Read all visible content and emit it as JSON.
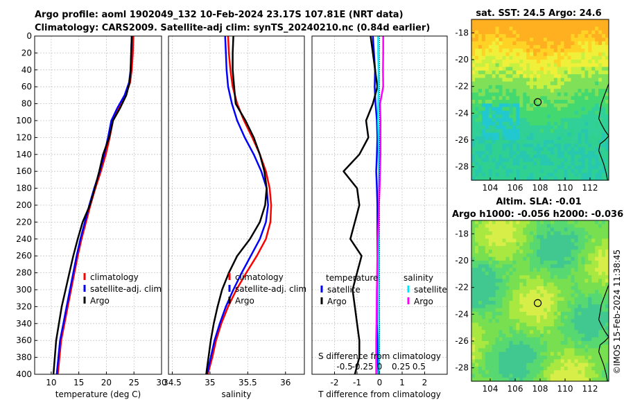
{
  "header": {
    "line1": "Argo profile: aoml 1902049_132 10-Feb-2024 23.17S 107.81E (NRT data)",
    "line2": "Climatology: CARS2009. Satellite-adj clim: synTS_20240210.nc (0.84d earlier)"
  },
  "watermark": "©IMOS 15-Feb-2024 11:38:45",
  "colors": {
    "climatology": "#ff0000",
    "satellite": "#0000ff",
    "argo": "#000000",
    "sat_salinity": "#00e5ff",
    "argo_salinity": "#ff00ff",
    "grid": "#c8c8c8"
  },
  "chart_data": [
    {
      "type": "line",
      "name": "temperature-profile",
      "xlabel": "temperature (deg C)",
      "xlim": [
        7,
        30
      ],
      "ylim": [
        0,
        400
      ],
      "y_reversed": true,
      "xticks": [
        "10",
        "15",
        "20",
        "25",
        "30"
      ],
      "xtick_values": [
        10,
        15,
        20,
        25,
        30
      ],
      "yticks": [
        "0",
        "20",
        "40",
        "60",
        "80",
        "100",
        "120",
        "140",
        "160",
        "180",
        "200",
        "220",
        "240",
        "260",
        "280",
        "300",
        "320",
        "340",
        "360",
        "380",
        "400"
      ],
      "ytick_values": [
        0,
        20,
        40,
        60,
        80,
        100,
        120,
        140,
        160,
        180,
        200,
        220,
        240,
        260,
        280,
        300,
        320,
        340,
        360,
        380,
        400
      ],
      "legend": [
        "climatology",
        "satellite-adj. clim",
        "Argo"
      ],
      "series": [
        {
          "name": "climatology",
          "color": "#ff0000",
          "x": [
            24.9,
            24.8,
            24.6,
            24.3,
            23.5,
            22.3,
            21.2,
            20.6,
            19.9,
            19.0,
            18.0,
            17.1,
            16.3,
            15.5,
            14.8,
            14.2,
            13.6,
            13.0,
            12.4,
            11.8,
            11.2
          ],
          "y": [
            0,
            20,
            40,
            55,
            70,
            85,
            100,
            120,
            140,
            160,
            180,
            200,
            220,
            240,
            260,
            280,
            300,
            320,
            340,
            360,
            400
          ]
        },
        {
          "name": "satellite-adj. clim",
          "color": "#0000ff",
          "x": [
            24.6,
            24.5,
            24.4,
            24.1,
            23.3,
            22.0,
            20.9,
            20.3,
            19.6,
            18.8,
            17.8,
            16.9,
            16.1,
            15.3,
            14.6,
            14.0,
            13.4,
            12.8,
            12.2,
            11.6,
            11.0
          ],
          "y": [
            0,
            20,
            40,
            55,
            70,
            85,
            100,
            120,
            140,
            160,
            180,
            200,
            220,
            240,
            260,
            280,
            300,
            320,
            340,
            360,
            400
          ]
        },
        {
          "name": "Argo",
          "color": "#000000",
          "x": [
            24.6,
            24.5,
            24.4,
            24.2,
            23.6,
            22.5,
            21.2,
            20.5,
            19.4,
            18.7,
            17.9,
            17.0,
            15.7,
            14.8,
            14.0,
            13.3,
            12.6,
            11.9,
            11.4,
            10.9,
            10.4
          ],
          "y": [
            0,
            20,
            40,
            55,
            70,
            85,
            100,
            120,
            140,
            160,
            180,
            200,
            220,
            240,
            260,
            280,
            300,
            320,
            340,
            360,
            400
          ]
        }
      ]
    },
    {
      "type": "line",
      "name": "salinity-profile",
      "xlabel": "salinity",
      "xlim": [
        34.45,
        36.25
      ],
      "ylim": [
        0,
        400
      ],
      "y_reversed": true,
      "xticks": [
        "34.5",
        "35",
        "35.5",
        "36"
      ],
      "xtick_values": [
        34.5,
        35,
        35.5,
        36
      ],
      "legend": [
        "climatology",
        "satellite-adj. clim",
        "Argo"
      ],
      "series": [
        {
          "name": "climatology",
          "color": "#ff0000",
          "x": [
            35.24,
            35.25,
            35.27,
            35.3,
            35.36,
            35.45,
            35.56,
            35.66,
            35.74,
            35.79,
            35.81,
            35.8,
            35.74,
            35.62,
            35.48,
            35.35,
            35.24,
            35.15,
            35.08,
            35.03,
            34.97
          ],
          "y": [
            0,
            20,
            40,
            60,
            80,
            100,
            120,
            140,
            160,
            180,
            200,
            220,
            240,
            260,
            280,
            300,
            320,
            340,
            360,
            380,
            400
          ]
        },
        {
          "name": "satellite-adj. clim",
          "color": "#0000ff",
          "x": [
            35.2,
            35.21,
            35.22,
            35.24,
            35.29,
            35.36,
            35.46,
            35.58,
            35.68,
            35.75,
            35.77,
            35.74,
            35.66,
            35.54,
            35.42,
            35.31,
            35.21,
            35.13,
            35.06,
            35.01,
            34.96
          ],
          "y": [
            0,
            20,
            40,
            60,
            80,
            100,
            120,
            140,
            160,
            180,
            200,
            220,
            240,
            260,
            280,
            300,
            320,
            340,
            360,
            380,
            400
          ]
        },
        {
          "name": "Argo",
          "color": "#000000",
          "x": [
            35.31,
            35.3,
            35.3,
            35.32,
            35.34,
            35.47,
            35.58,
            35.66,
            35.72,
            35.75,
            35.73,
            35.66,
            35.53,
            35.36,
            35.25,
            35.16,
            35.1,
            35.05,
            35.01,
            34.98,
            34.95
          ],
          "y": [
            0,
            20,
            40,
            60,
            80,
            100,
            120,
            140,
            160,
            180,
            200,
            220,
            240,
            260,
            280,
            300,
            320,
            340,
            360,
            380,
            400
          ]
        }
      ]
    },
    {
      "type": "line",
      "name": "difference-profile",
      "xlabel": "T difference from climatology",
      "xlabel2": "S difference from climatology",
      "xlim": [
        -3,
        3
      ],
      "ylim": [
        0,
        400
      ],
      "y_reversed": true,
      "xticks": [
        "-2",
        "-1",
        "0",
        "1",
        "2"
      ],
      "xtick_values": [
        -2,
        -1,
        0,
        1,
        2
      ],
      "x2ticks": [
        "-0.5",
        "-0.25",
        "0",
        "0.25",
        "0.5"
      ],
      "legend_left_title": "temperature",
      "legend_right_title": "salinity",
      "legend": [
        "satellite",
        "Argo",
        "satellite",
        "Argo"
      ],
      "series": [
        {
          "name": "T satellite",
          "color": "#0000ff",
          "x": [
            -0.3,
            -0.25,
            -0.2,
            -0.22,
            -0.18,
            -0.12,
            -0.1,
            -0.12,
            -0.15,
            -0.12,
            -0.1,
            -0.1,
            -0.1,
            -0.1,
            -0.1,
            -0.12,
            -0.12,
            -0.12,
            -0.1,
            -0.08,
            -0.05
          ],
          "y": [
            0,
            20,
            40,
            60,
            80,
            100,
            120,
            140,
            160,
            180,
            200,
            220,
            240,
            260,
            280,
            300,
            320,
            340,
            360,
            380,
            400
          ]
        },
        {
          "name": "T Argo",
          "color": "#000000",
          "x": [
            -0.4,
            -0.3,
            -0.2,
            -0.1,
            -0.3,
            -0.6,
            -0.5,
            -0.9,
            -1.6,
            -1.0,
            -0.9,
            -1.1,
            -1.3,
            -0.8,
            -1.0,
            -1.2,
            -1.1,
            -1.0,
            -0.9,
            -0.9,
            -1.1
          ],
          "y": [
            0,
            20,
            40,
            60,
            80,
            100,
            120,
            140,
            160,
            180,
            200,
            220,
            240,
            260,
            280,
            300,
            320,
            340,
            360,
            380,
            400
          ]
        },
        {
          "name": "S satellite",
          "color": "#00e5ff",
          "x": [
            -0.06,
            -0.06,
            -0.05,
            -0.05,
            -0.06,
            -0.07,
            -0.05,
            -0.04,
            -0.04,
            -0.04,
            -0.03,
            -0.03,
            -0.03,
            -0.03,
            -0.03,
            -0.03,
            -0.03,
            -0.02,
            -0.02,
            -0.02,
            -0.02
          ],
          "y": [
            0,
            20,
            40,
            60,
            80,
            100,
            120,
            140,
            160,
            180,
            200,
            220,
            240,
            260,
            280,
            300,
            320,
            340,
            360,
            380,
            400
          ]
        },
        {
          "name": "S Argo",
          "color": "#ff00ff",
          "x": [
            0.16,
            0.16,
            0.15,
            0.16,
            0.02,
            0.04,
            0.04,
            0.04,
            0.02,
            0.0,
            -0.03,
            -0.05,
            -0.08,
            -0.1,
            -0.11,
            -0.12,
            -0.13,
            -0.14,
            -0.15,
            -0.15,
            -0.15
          ],
          "y": [
            0,
            20,
            40,
            60,
            80,
            100,
            120,
            140,
            160,
            180,
            200,
            220,
            240,
            260,
            280,
            300,
            320,
            340,
            360,
            380,
            400
          ]
        }
      ]
    },
    {
      "type": "heatmap",
      "name": "sst-map",
      "title": "sat. SST: 24.5 Argo: 24.6",
      "xlim": [
        102.5,
        113.5
      ],
      "ylim": [
        -29,
        -17
      ],
      "xticks": [
        "104",
        "106",
        "108",
        "110",
        "112"
      ],
      "xtick_values": [
        104,
        106,
        108,
        110,
        112
      ],
      "yticks": [
        "-18",
        "-20",
        "-22",
        "-24",
        "-26",
        "-28"
      ],
      "ytick_values": [
        -18,
        -20,
        -22,
        -24,
        -26,
        -28
      ],
      "argo_position": {
        "lon": 107.81,
        "lat": -23.17
      }
    },
    {
      "type": "heatmap",
      "name": "sla-map",
      "title1": "Altim. SLA: -0.01",
      "title2": "Argo h1000: -0.056 h2000: -0.036",
      "xlim": [
        102.5,
        113.5
      ],
      "ylim": [
        -29,
        -17
      ],
      "xticks": [
        "104",
        "106",
        "108",
        "110",
        "112"
      ],
      "xtick_values": [
        104,
        106,
        108,
        110,
        112
      ],
      "yticks": [
        "-18",
        "-20",
        "-22",
        "-24",
        "-26",
        "-28"
      ],
      "ytick_values": [
        -18,
        -20,
        -22,
        -24,
        -26,
        -28
      ],
      "argo_position": {
        "lon": 107.81,
        "lat": -23.17
      }
    }
  ]
}
